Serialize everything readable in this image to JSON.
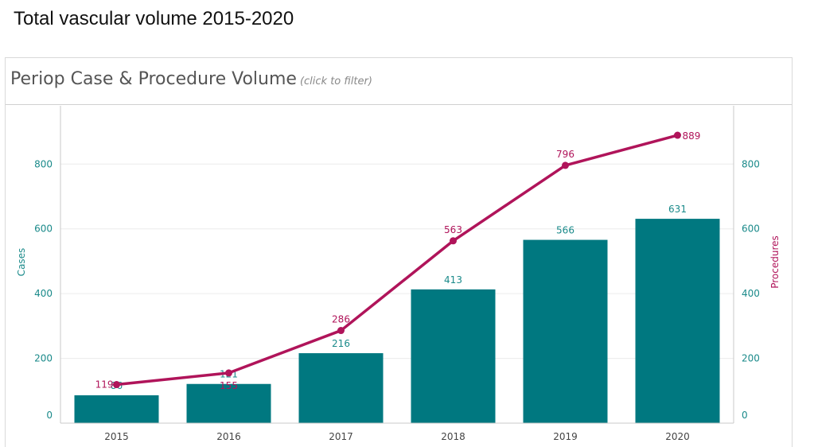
{
  "slide": {
    "title": "Total vascular volume 2015-2020"
  },
  "panel": {
    "title": "Periop Case & Procedure Volume",
    "hint": "(click to filter)"
  },
  "colors": {
    "bars": "#007880",
    "line": "#b0145a",
    "axis_left": "#1a8a8a",
    "axis_right": "#b0145a",
    "grid": "#ececec"
  },
  "chart_data": {
    "type": "bar+line",
    "categories": [
      "2015",
      "2016",
      "2017",
      "2018",
      "2019",
      "2020"
    ],
    "series": [
      {
        "name": "Cases",
        "type": "bar",
        "axis": "left",
        "values": [
          86,
          121,
          216,
          413,
          566,
          631
        ]
      },
      {
        "name": "Procedures",
        "type": "line",
        "axis": "right",
        "values": [
          119,
          155,
          286,
          563,
          796,
          889
        ]
      }
    ],
    "y_left": {
      "label": "Cases",
      "ticks": [
        0,
        200,
        400,
        600,
        800
      ],
      "range": [
        0,
        980
      ]
    },
    "y_right": {
      "label": "Procedures",
      "ticks": [
        0,
        200,
        400,
        600,
        800
      ],
      "range": [
        0,
        980
      ]
    },
    "grid": true
  }
}
